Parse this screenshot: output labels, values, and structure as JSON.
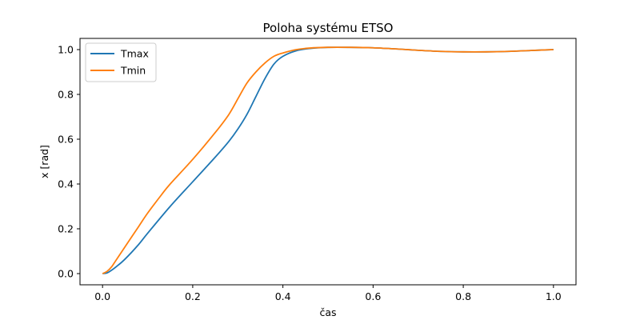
{
  "chart_data": {
    "type": "line",
    "title": "Poloha systému ETSO",
    "xlabel": "čas",
    "ylabel": "x [rad]",
    "xlim": [
      -0.05,
      1.05
    ],
    "ylim": [
      -0.05,
      1.05
    ],
    "xticks": [
      0.0,
      0.2,
      0.4,
      0.6,
      0.8,
      1.0
    ],
    "xtick_labels": [
      "0.0",
      "0.2",
      "0.4",
      "0.6",
      "0.8",
      "1.0"
    ],
    "yticks": [
      0.0,
      0.2,
      0.4,
      0.6,
      0.8,
      1.0
    ],
    "ytick_labels": [
      "0.0",
      "0.2",
      "0.4",
      "0.6",
      "0.8",
      "1.0"
    ],
    "grid": false,
    "legend": "top-left",
    "series": [
      {
        "name": "Tmax",
        "color": "#1f77b4",
        "x": [
          0.0,
          0.01,
          0.02,
          0.03,
          0.05,
          0.08,
          0.1,
          0.15,
          0.2,
          0.25,
          0.28,
          0.3,
          0.32,
          0.34,
          0.36,
          0.38,
          0.4,
          0.43,
          0.46,
          0.5,
          0.55,
          0.6,
          0.65,
          0.7,
          0.75,
          0.8,
          0.85,
          0.9,
          0.95,
          1.0
        ],
        "y": [
          0.0,
          0.003,
          0.015,
          0.03,
          0.065,
          0.13,
          0.18,
          0.3,
          0.41,
          0.52,
          0.59,
          0.645,
          0.71,
          0.79,
          0.87,
          0.935,
          0.97,
          0.995,
          1.005,
          1.01,
          1.01,
          1.008,
          1.003,
          0.997,
          0.992,
          0.99,
          0.99,
          0.992,
          0.996,
          1.0
        ]
      },
      {
        "name": "Tmin",
        "color": "#ff7f0e",
        "x": [
          0.0,
          0.01,
          0.02,
          0.03,
          0.05,
          0.08,
          0.1,
          0.13,
          0.15,
          0.2,
          0.25,
          0.28,
          0.3,
          0.32,
          0.34,
          0.36,
          0.38,
          0.4,
          0.43,
          0.46,
          0.5,
          0.55,
          0.6,
          0.65,
          0.7,
          0.75,
          0.8,
          0.85,
          0.9,
          0.95,
          1.0
        ],
        "y": [
          0.0,
          0.01,
          0.03,
          0.06,
          0.12,
          0.21,
          0.27,
          0.35,
          0.4,
          0.51,
          0.63,
          0.71,
          0.78,
          0.85,
          0.9,
          0.94,
          0.97,
          0.985,
          1.0,
          1.007,
          1.01,
          1.01,
          1.008,
          1.003,
          0.997,
          0.992,
          0.99,
          0.99,
          0.992,
          0.996,
          1.0
        ]
      }
    ]
  }
}
